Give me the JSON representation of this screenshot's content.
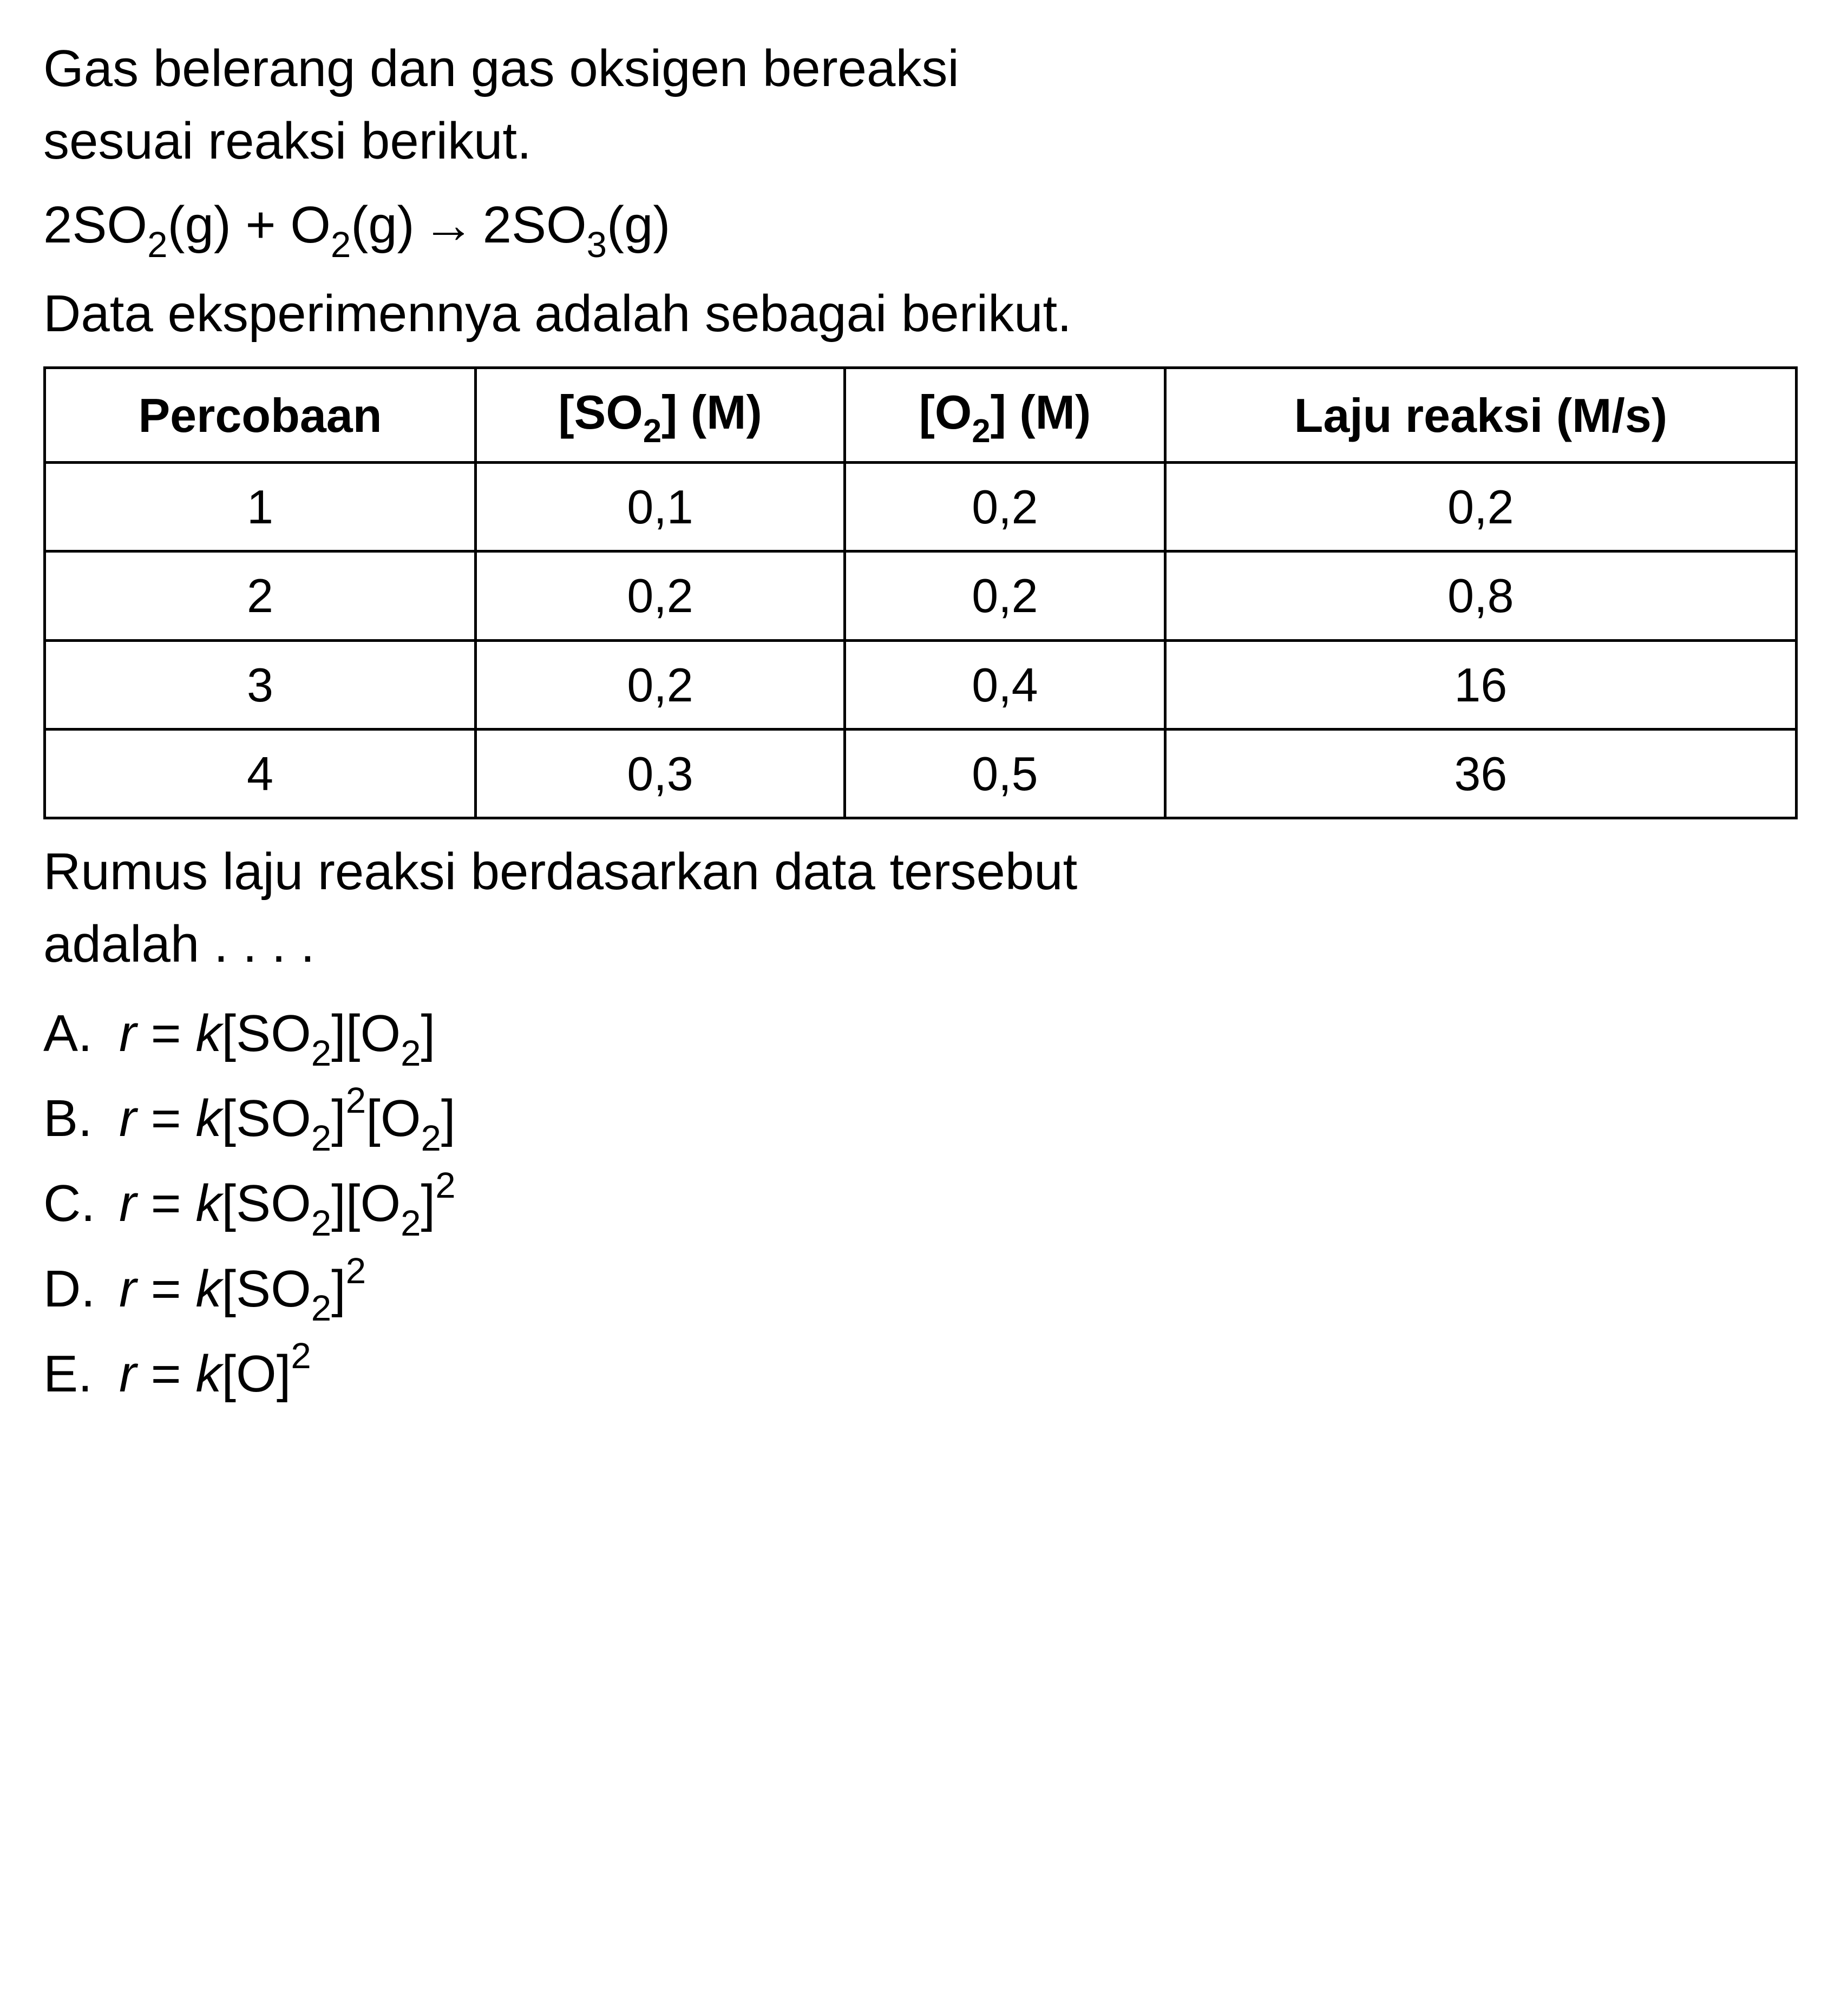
{
  "intro": {
    "line1": "Gas belerang dan gas oksigen bereaksi",
    "line2": "sesuai reaksi berikut."
  },
  "equation": {
    "left1_coef": "2SO",
    "left1_sub": "2",
    "left1_state": "(g)",
    "plus": " + ",
    "left2": "O",
    "left2_sub": "2",
    "left2_state": "(g)",
    "arrow": "→",
    "right_coef": "2SO",
    "right_sub": "3",
    "right_state": "(g)"
  },
  "data_text": "Data eksperimennya adalah sebagai berikut.",
  "table": {
    "headers": {
      "h1": "Percobaan",
      "h2_prefix": "[SO",
      "h2_sub": "2",
      "h2_suffix": "] (M)",
      "h3_prefix": "[O",
      "h3_sub": "2",
      "h3_suffix": "] (M)",
      "h4": "Laju reaksi (M/s)"
    },
    "rows": [
      {
        "c1": "1",
        "c2": "0,1",
        "c3": "0,2",
        "c4": "0,2"
      },
      {
        "c1": "2",
        "c2": "0,2",
        "c3": "0,2",
        "c4": "0,8"
      },
      {
        "c1": "3",
        "c2": "0,2",
        "c3": "0,4",
        "c4": "16"
      },
      {
        "c1": "4",
        "c2": "0,3",
        "c3": "0,5",
        "c4": "36"
      }
    ]
  },
  "question": {
    "line1": "Rumus laju reaksi berdasarkan data tersebut",
    "line2": "adalah . . . ."
  },
  "options": {
    "a": {
      "letter": "A.",
      "r": "r",
      "eq": " = ",
      "k": "k",
      "so": "[SO",
      "so_sub": "2",
      "so_close": "]",
      "o": "[O",
      "o_sub": "2",
      "o_close": "]"
    },
    "b": {
      "letter": "B.",
      "r": "r",
      "eq": " = ",
      "k": "k",
      "so": "[SO",
      "so_sub": "2",
      "so_close": "]",
      "so_sup": "2",
      "o": "[O",
      "o_sub": "2",
      "o_close": "]"
    },
    "c": {
      "letter": "C.",
      "r": "r",
      "eq": " = ",
      "k": "k",
      "so": "[SO",
      "so_sub": "2",
      "so_close": "]",
      "o": "[O",
      "o_sub": "2",
      "o_close": "]",
      "o_sup": "2"
    },
    "d": {
      "letter": "D.",
      "r": "r",
      "eq": " = ",
      "k": "k",
      "so": "[SO",
      "so_sub": "2",
      "so_close": "]",
      "so_sup": "2"
    },
    "e": {
      "letter": "E.",
      "r": "r",
      "eq": " = ",
      "k": "k",
      "o": "[O]",
      "o_sup": "2"
    }
  }
}
